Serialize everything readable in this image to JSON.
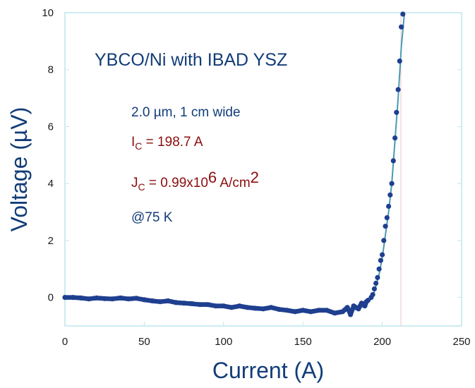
{
  "chart_data": {
    "type": "scatter",
    "xlabel": "Current (A)",
    "ylabel": "Voltage (µV)",
    "xlim": [
      0,
      250
    ],
    "ylim": [
      -1,
      10
    ],
    "xticks": [
      "0",
      "50",
      "100",
      "150",
      "200",
      "250"
    ],
    "yticks": [
      "0",
      "2",
      "4",
      "6",
      "8",
      "10"
    ],
    "grid": false,
    "colors": {
      "points": "#1f3f8f",
      "fit_line": "#4a9ab4",
      "text_blue": "#123d78",
      "text_red": "#8b0e0e",
      "frame": "#bfe6ee"
    },
    "annotations": {
      "sample": "YBCO/Ni with IBAD YSZ",
      "dims": "2.0 µm, 1 cm wide",
      "ic_label": "I",
      "ic_sub": "C",
      "ic_value": " = 198.7 A",
      "jc_label": "J",
      "jc_sub": "C",
      "jc_value": " = 0.99x10",
      "jc_exp": "6",
      "jc_unit": " A/cm",
      "jc_unit_exp": "2",
      "temp": "@75 K"
    },
    "series": [
      {
        "x": [
          0,
          5,
          10,
          15,
          20,
          25,
          30,
          35,
          40,
          45,
          50,
          55,
          60,
          65,
          70,
          75,
          80,
          85,
          90,
          95,
          100,
          105,
          110,
          115,
          120,
          125,
          130,
          135,
          140,
          145,
          150,
          155,
          160,
          165,
          170,
          175,
          178,
          180,
          182,
          185,
          187,
          189,
          190,
          191,
          193,
          194,
          195,
          196,
          197,
          198,
          199,
          200,
          201,
          202,
          203,
          204,
          205,
          206,
          207,
          208,
          209,
          210,
          211,
          212,
          213
        ],
        "y": [
          0.0,
          0.0,
          -0.02,
          -0.05,
          -0.02,
          -0.04,
          -0.05,
          -0.02,
          -0.05,
          -0.03,
          -0.08,
          -0.12,
          -0.15,
          -0.12,
          -0.18,
          -0.2,
          -0.22,
          -0.25,
          -0.25,
          -0.3,
          -0.3,
          -0.35,
          -0.3,
          -0.35,
          -0.38,
          -0.4,
          -0.35,
          -0.42,
          -0.45,
          -0.5,
          -0.45,
          -0.5,
          -0.45,
          -0.45,
          -0.55,
          -0.5,
          -0.35,
          -0.6,
          -0.3,
          -0.4,
          -0.2,
          -0.3,
          -0.15,
          -0.1,
          0.0,
          0.1,
          0.3,
          0.5,
          0.7,
          1.0,
          1.3,
          1.5,
          2.0,
          2.5,
          2.8,
          3.2,
          3.6,
          4.0,
          4.8,
          5.6,
          6.5,
          7.3,
          8.3,
          9.5,
          10.0
        ]
      }
    ],
    "fit_curve": {
      "x": [
        0,
        50,
        100,
        150,
        175,
        185,
        190,
        193,
        195,
        198,
        200,
        202,
        204,
        206,
        208,
        210,
        212,
        214
      ],
      "y": [
        0.0,
        -0.05,
        -0.3,
        -0.45,
        -0.5,
        -0.4,
        -0.25,
        -0.05,
        0.2,
        0.8,
        1.4,
        2.2,
        3.0,
        4.0,
        5.5,
        7.0,
        8.8,
        10.2
      ]
    }
  }
}
